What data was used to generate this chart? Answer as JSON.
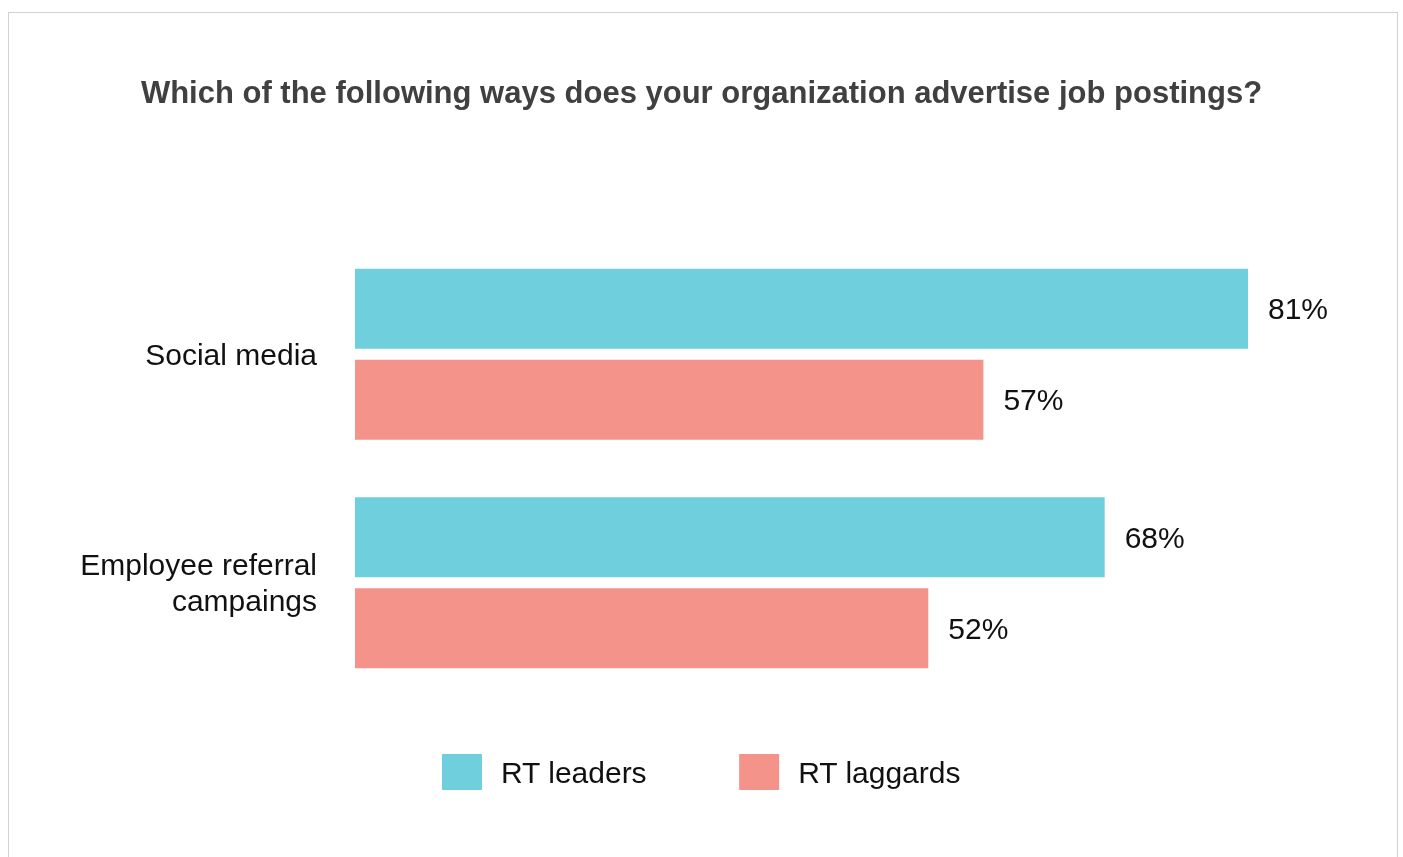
{
  "chart_data": {
    "type": "bar",
    "orientation": "horizontal",
    "title": "Which of the following ways does your organization advertise job postings?",
    "categories": [
      "Social media",
      "Employee referral\ncampaings"
    ],
    "series": [
      {
        "name": "RT leaders",
        "color": "#6fcfdd",
        "values": [
          81,
          68
        ],
        "value_labels": [
          "81%",
          "68%"
        ]
      },
      {
        "name": "RT laggards",
        "color": "#f4938a",
        "values": [
          57,
          52
        ],
        "value_labels": [
          "57%",
          "52%"
        ]
      }
    ],
    "legend": "bottom"
  }
}
